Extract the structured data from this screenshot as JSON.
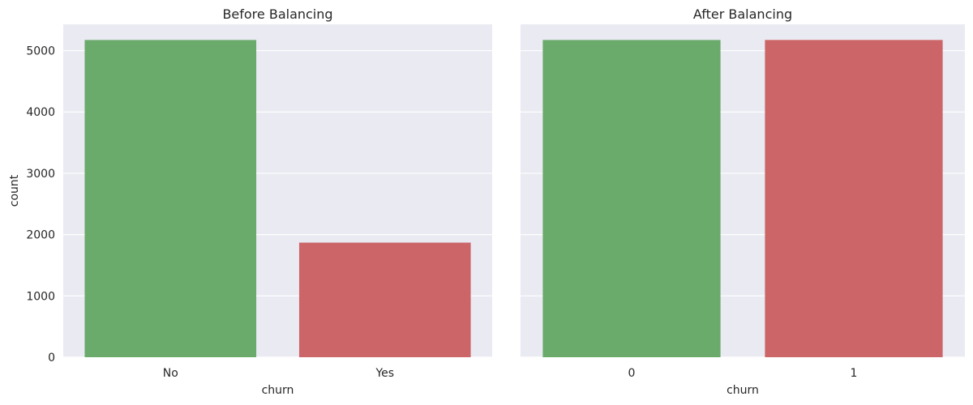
{
  "chart_data": [
    {
      "type": "bar",
      "title": "Before Balancing",
      "xlabel": "churn",
      "ylabel": "count",
      "categories": [
        "No",
        "Yes"
      ],
      "values": [
        5174,
        1869
      ],
      "colors": [
        "#6aaa6b",
        "#cc6567"
      ],
      "ylim": [
        0,
        5430
      ],
      "yticks": [
        0,
        1000,
        2000,
        3000,
        4000,
        5000
      ],
      "ytick_labels": [
        "0",
        "1000",
        "2000",
        "3000",
        "4000",
        "5000"
      ],
      "grid": true
    },
    {
      "type": "bar",
      "title": "After Balancing",
      "xlabel": "churn",
      "ylabel": "",
      "categories": [
        "0",
        "1"
      ],
      "values": [
        5174,
        5174
      ],
      "colors": [
        "#6aaa6b",
        "#cc6567"
      ],
      "ylim": [
        0,
        5430
      ],
      "yticks": [
        0,
        1000,
        2000,
        3000,
        4000,
        5000
      ],
      "ytick_labels": [],
      "grid": true
    }
  ],
  "style": {
    "panel_background": "#eaeaf2",
    "grid_color": "#ffffff",
    "text_color": "#262626"
  }
}
